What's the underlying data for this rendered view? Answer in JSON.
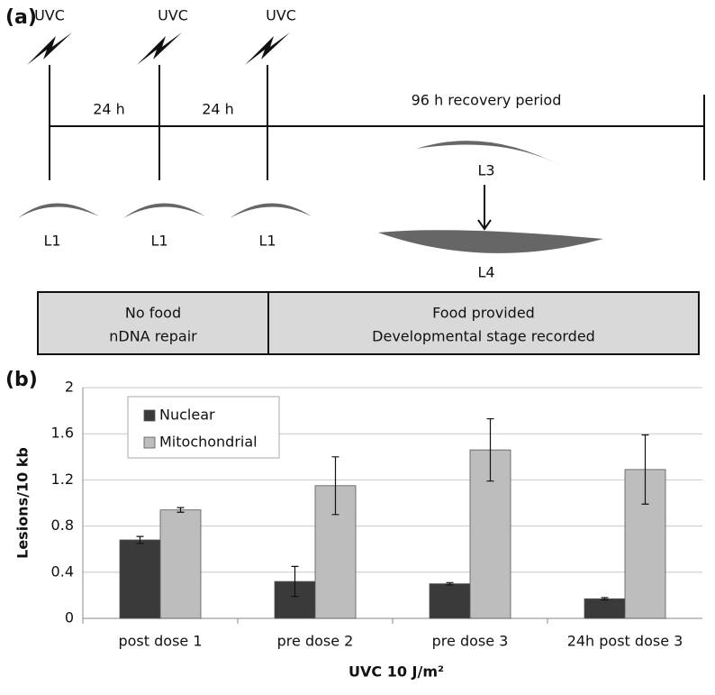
{
  "panel_a": {
    "label": "(a)",
    "uvc": [
      "UVC",
      "UVC",
      "UVC"
    ],
    "intervals": [
      "24 h",
      "24 h"
    ],
    "recovery": "96 h recovery period",
    "stages": [
      "L1",
      "L1",
      "L1"
    ],
    "l3": "L3",
    "l4": "L4",
    "boxes": [
      [
        "No food",
        "nDNA repair"
      ],
      [
        "Food provided",
        "Developmental stage recorded"
      ]
    ]
  },
  "chart_data": {
    "type": "bar",
    "panel_label": "(b)",
    "xlabel": "UVC 10 J/m²",
    "ylabel": "Lesions/10 kb",
    "categories": [
      "post dose 1",
      "pre dose 2",
      "pre dose 3",
      "24h post dose 3"
    ],
    "series": [
      {
        "name": "Nuclear",
        "color": "#3a3a3a",
        "values": [
          0.68,
          0.32,
          0.3,
          0.17
        ],
        "errors": [
          0.03,
          0.13,
          0.01,
          0.01
        ]
      },
      {
        "name": "Mitochondrial",
        "color": "#bdbdbd",
        "values": [
          0.94,
          1.15,
          1.46,
          1.29
        ],
        "errors": [
          0.02,
          0.25,
          0.27,
          0.3
        ]
      }
    ],
    "ylim": [
      0,
      2
    ],
    "yticks": [
      0,
      0.4,
      0.8,
      1.2,
      1.6,
      2
    ],
    "grid": true,
    "legend": "top-left"
  }
}
